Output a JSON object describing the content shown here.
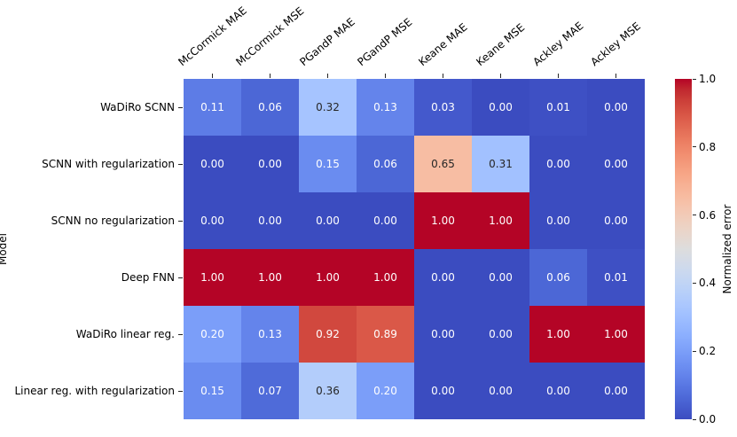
{
  "figure": {
    "background": "#ffffff",
    "text_color_dark": "#262626",
    "text_color_light": "#ffffff"
  },
  "chart_data": {
    "type": "heatmap",
    "title": "",
    "xlabel": "",
    "ylabel": "Model",
    "colorbar_label": "Normalized error",
    "columns": [
      "McCormick MAE",
      "McCormick MSE",
      "PGandP MAE",
      "PGandP MSE",
      "Keane MAE",
      "Keane MSE",
      "Ackley MAE",
      "Ackley MSE"
    ],
    "rows": [
      "WaDiRo SCNN",
      "SCNN with regularization",
      "SCNN no regularization",
      "Deep FNN",
      "WaDiRo linear reg.",
      "Linear reg. with regularization"
    ],
    "values": [
      [
        0.11,
        0.06,
        0.32,
        0.13,
        0.03,
        0.0,
        0.01,
        0.0
      ],
      [
        0.0,
        0.0,
        0.15,
        0.06,
        0.65,
        0.31,
        0.0,
        0.0
      ],
      [
        0.0,
        0.0,
        0.0,
        0.0,
        1.0,
        1.0,
        0.0,
        0.0
      ],
      [
        1.0,
        1.0,
        1.0,
        1.0,
        0.0,
        0.0,
        0.06,
        0.01
      ],
      [
        0.2,
        0.13,
        0.92,
        0.89,
        0.0,
        0.0,
        1.0,
        1.0
      ],
      [
        0.15,
        0.07,
        0.36,
        0.2,
        0.0,
        0.0,
        0.0,
        0.0
      ]
    ],
    "value_decimals": 2,
    "vmin": 0.0,
    "vmax": 1.0,
    "colorbar_ticks": [
      0.0,
      0.2,
      0.4,
      0.6,
      0.8,
      1.0
    ],
    "colorbar_tick_decimals": 1,
    "colormap": {
      "name": "coolwarm",
      "min_hex": "#3b4cc0",
      "mid_hex": "#dddddd",
      "max_hex": "#b40426"
    },
    "legend_position": "right-colorbar",
    "grid": false
  }
}
